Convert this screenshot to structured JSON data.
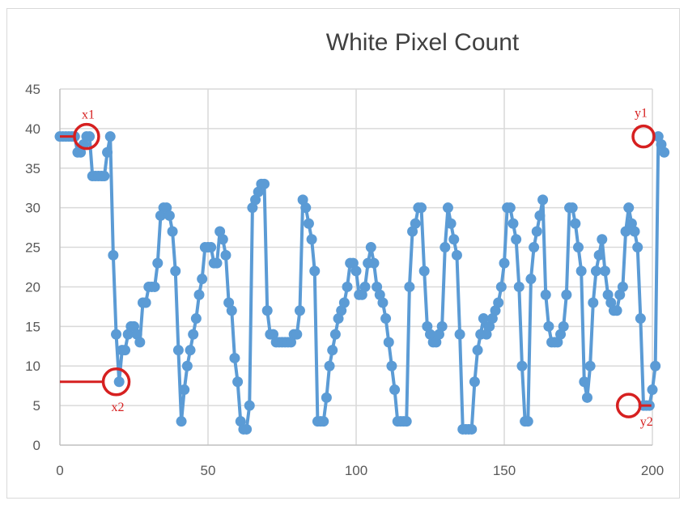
{
  "chart_data": {
    "type": "line",
    "title": "White Pixel Count",
    "xlabel": "",
    "ylabel": "",
    "xlim": [
      0,
      200
    ],
    "ylim": [
      0,
      45
    ],
    "xticks": [
      0,
      50,
      100,
      150,
      200
    ],
    "yticks": [
      0,
      5,
      10,
      15,
      20,
      25,
      30,
      35,
      40,
      45
    ],
    "grid": true,
    "legend": "none",
    "series_color": "#5b9bd5",
    "annotation_color": "#d62020",
    "series": [
      {
        "values": [
          39,
          39,
          39,
          39,
          39,
          39,
          37,
          37,
          38,
          39,
          39,
          34,
          34,
          34,
          34,
          34,
          37,
          39,
          24,
          14,
          8,
          12,
          12,
          14,
          15,
          15,
          14,
          13,
          18,
          18,
          20,
          20,
          20,
          23,
          29,
          30,
          30,
          29,
          27,
          22,
          12,
          3,
          7,
          10,
          12,
          14,
          16,
          19,
          21,
          25,
          25,
          25,
          23,
          23,
          27,
          26,
          24,
          18,
          17,
          11,
          8,
          3,
          2,
          2,
          5,
          30,
          31,
          32,
          33,
          33,
          17,
          14,
          14,
          13,
          13,
          13,
          13,
          13,
          13,
          14,
          14,
          17,
          31,
          30,
          28,
          26,
          22,
          3,
          3,
          3,
          6,
          10,
          12,
          14,
          16,
          17,
          18,
          20,
          23,
          23,
          22,
          19,
          19,
          20,
          23,
          25,
          23,
          20,
          19,
          18,
          16,
          13,
          10,
          7,
          3,
          3,
          3,
          3,
          20,
          27,
          28,
          30,
          30,
          22,
          15,
          14,
          13,
          13,
          14,
          15,
          25,
          30,
          28,
          26,
          24,
          14,
          2,
          2,
          2,
          2,
          8,
          12,
          14,
          16,
          14,
          15,
          16,
          17,
          18,
          20,
          23,
          30,
          30,
          28,
          26,
          20,
          10,
          3,
          3,
          21,
          25,
          27,
          29,
          31,
          19,
          15,
          13,
          13,
          13,
          14,
          15,
          19,
          30,
          30,
          28,
          25,
          22,
          8,
          6,
          10,
          18,
          22,
          24,
          26,
          22,
          19,
          18,
          17,
          17,
          19,
          20,
          27,
          30,
          28,
          27,
          25,
          16,
          5,
          5,
          5,
          7,
          10,
          39,
          38,
          37
        ],
        "x_start": 0
      }
    ],
    "annotations": [
      {
        "label": "x1",
        "x": 9,
        "y": 39
      },
      {
        "label": "x2",
        "x": 19,
        "y": 8
      },
      {
        "label": "y1",
        "x": 197,
        "y": 39
      },
      {
        "label": "y2",
        "x": 192,
        "y": 5
      }
    ]
  }
}
